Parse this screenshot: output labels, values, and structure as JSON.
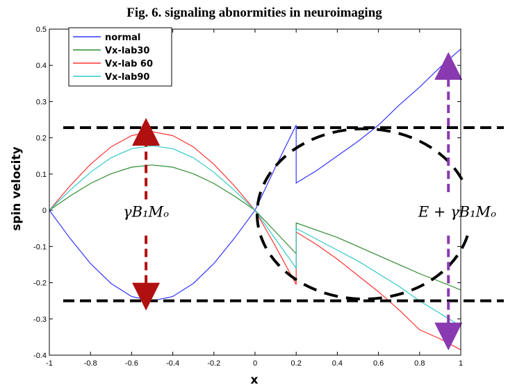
{
  "chart_data": {
    "type": "line",
    "title": "Fig. 6. signaling abnormities in neuroimaging",
    "xlabel": "x",
    "ylabel": "spin velocity",
    "xlim": [
      -1,
      1
    ],
    "ylim": [
      -0.4,
      0.5
    ],
    "xticks": [
      "-1",
      "-0.8",
      "-0.6",
      "-0.4",
      "-0.2",
      "0",
      "0.2",
      "0.4",
      "0.6",
      "0.8",
      "1"
    ],
    "yticks": [
      "-0.4",
      "-0.3",
      "-0.2",
      "-0.1",
      "0",
      "0.1",
      "0.2",
      "0.3",
      "0.4",
      "0.5"
    ],
    "grid": false,
    "legend_position": "top-left",
    "x": [
      -1,
      -0.9,
      -0.8,
      -0.7,
      -0.6,
      -0.5,
      -0.4,
      -0.3,
      -0.2,
      -0.1,
      0,
      0.1,
      0.2,
      0.2,
      0.3,
      0.4,
      0.5,
      0.6,
      0.7,
      0.8,
      0.9,
      1.0
    ],
    "series": [
      {
        "name": "normal",
        "color": "#3333ff",
        "values": [
          0,
          -0.077,
          -0.147,
          -0.202,
          -0.238,
          -0.25,
          -0.238,
          -0.202,
          -0.147,
          -0.077,
          0,
          0.12,
          0.235,
          0.075,
          0.11,
          0.15,
          0.19,
          0.235,
          0.29,
          0.34,
          0.395,
          0.445
        ]
      },
      {
        "name": "Vx-lab30",
        "color": "#2e8b2e",
        "values": [
          0,
          0.039,
          0.074,
          0.101,
          0.119,
          0.125,
          0.119,
          0.101,
          0.074,
          0.039,
          0,
          -0.06,
          -0.12,
          -0.035,
          -0.055,
          -0.075,
          -0.1,
          -0.125,
          -0.15,
          -0.175,
          -0.197,
          -0.22
        ]
      },
      {
        "name": "Vx-lab 60",
        "color": "#ff3030",
        "values": [
          0,
          0.067,
          0.127,
          0.175,
          0.206,
          0.217,
          0.206,
          0.175,
          0.127,
          0.067,
          0,
          -0.1,
          -0.205,
          -0.06,
          -0.095,
          -0.135,
          -0.18,
          -0.225,
          -0.275,
          -0.33,
          -0.355,
          -0.385
        ]
      },
      {
        "name": "Vx-lab90",
        "color": "#30c8c8",
        "values": [
          0,
          0.055,
          0.105,
          0.145,
          0.17,
          0.178,
          0.17,
          0.145,
          0.105,
          0.055,
          0,
          -0.08,
          -0.16,
          -0.05,
          -0.08,
          -0.11,
          -0.14,
          -0.175,
          -0.21,
          -0.25,
          -0.285,
          -0.32
        ]
      }
    ],
    "annotations": {
      "left_label": "γB₁Mₒ",
      "right_label": "E + γB₁Mₒ",
      "upper_dashed_line_y": 0.228,
      "lower_dashed_line_y": -0.25,
      "left_arrow_x": -0.53,
      "right_arrow_x": 0.94,
      "right_arrow_top_y": 0.41,
      "right_arrow_bottom_y": -0.36,
      "left_arrow_color": "#b01010",
      "right_arrow_color": "#8a3ab0"
    }
  }
}
